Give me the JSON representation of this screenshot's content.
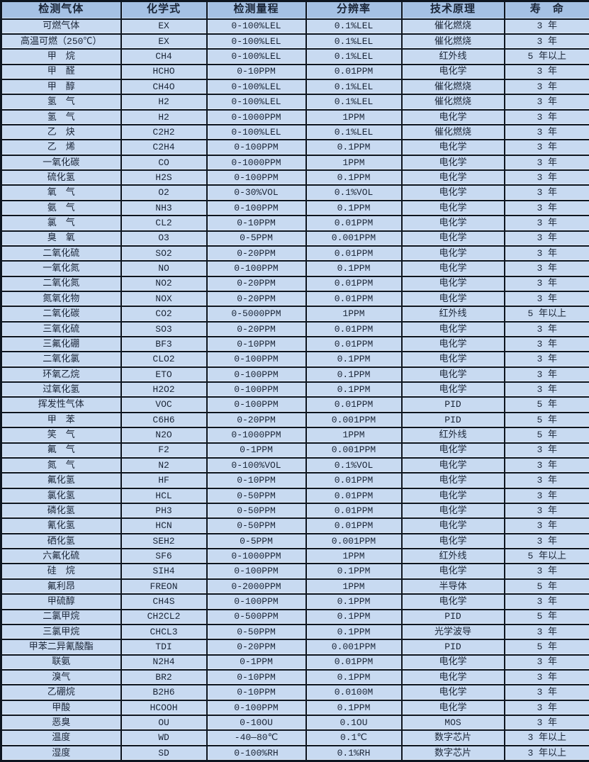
{
  "colors": {
    "header_bg": "#a5c1e4",
    "row_bg": "#c8daf1",
    "border": "#0d1520",
    "text": "#1b2638"
  },
  "table": {
    "columns": [
      "检测气体",
      "化学式",
      "检测量程",
      "分辨率",
      "技术原理",
      "寿　命"
    ],
    "rows": [
      [
        "可燃气体",
        "EX",
        "0-100%LEL",
        "0.1%LEL",
        "催化燃烧",
        "3 年"
      ],
      [
        "高温可燃（250℃）",
        "EX",
        "0-100%LEL",
        "0.1%LEL",
        "催化燃烧",
        "3 年"
      ],
      [
        "甲　烷",
        "CH4",
        "0-100%LEL",
        "0.1%LEL",
        "红外线",
        "5 年以上"
      ],
      [
        "甲　醛",
        "HCHO",
        "0-10PPM",
        "0.01PPM",
        "电化学",
        "3 年"
      ],
      [
        "甲　醇",
        "CH4O",
        "0-100%LEL",
        "0.1%LEL",
        "催化燃烧",
        "3 年"
      ],
      [
        "氢　气",
        "H2",
        "0-100%LEL",
        "0.1%LEL",
        "催化燃烧",
        "3 年"
      ],
      [
        "氢　气",
        "H2",
        "0-1000PPM",
        "1PPM",
        "电化学",
        "3 年"
      ],
      [
        "乙　炔",
        "C2H2",
        "0-100%LEL",
        "0.1%LEL",
        "催化燃烧",
        "3 年"
      ],
      [
        "乙　烯",
        "C2H4",
        "0-100PPM",
        "0.1PPM",
        "电化学",
        "3 年"
      ],
      [
        "一氧化碳",
        "CO",
        "0-1000PPM",
        "1PPM",
        "电化学",
        "3 年"
      ],
      [
        "硫化氢",
        "H2S",
        "0-100PPM",
        "0.1PPM",
        "电化学",
        "3 年"
      ],
      [
        "氧　气",
        "O2",
        "0-30%VOL",
        "0.1%VOL",
        "电化学",
        "3 年"
      ],
      [
        "氨　气",
        "NH3",
        "0-100PPM",
        "0.1PPM",
        "电化学",
        "3 年"
      ],
      [
        "氯　气",
        "CL2",
        "0-10PPM",
        "0.01PPM",
        "电化学",
        "3 年"
      ],
      [
        "臭　氧",
        "O3",
        "0-5PPM",
        "0.001PPM",
        "电化学",
        "3 年"
      ],
      [
        "二氧化硫",
        "SO2",
        "0-20PPM",
        "0.01PPM",
        "电化学",
        "3 年"
      ],
      [
        "一氧化氮",
        "NO",
        "0-100PPM",
        "0.1PPM",
        "电化学",
        "3 年"
      ],
      [
        "二氧化氮",
        "NO2",
        "0-20PPM",
        "0.01PPM",
        "电化学",
        "3 年"
      ],
      [
        "氮氧化物",
        "NOX",
        "0-20PPM",
        "0.01PPM",
        "电化学",
        "3 年"
      ],
      [
        "二氧化碳",
        "CO2",
        "0-5000PPM",
        "1PPM",
        "红外线",
        "5 年以上"
      ],
      [
        "三氧化硫",
        "SO3",
        "0-20PPM",
        "0.01PPM",
        "电化学",
        "3 年"
      ],
      [
        "三氟化硼",
        "BF3",
        "0-10PPM",
        "0.01PPM",
        "电化学",
        "3 年"
      ],
      [
        "二氧化氯",
        "CLO2",
        "0-100PPM",
        "0.1PPM",
        "电化学",
        "3 年"
      ],
      [
        "环氧乙烷",
        "ETO",
        "0-100PPM",
        "0.1PPM",
        "电化学",
        "3 年"
      ],
      [
        "过氧化氢",
        "H2O2",
        "0-100PPM",
        "0.1PPM",
        "电化学",
        "3 年"
      ],
      [
        "挥发性气体",
        "VOC",
        "0-100PPM",
        "0.01PPM",
        "PID",
        "5 年"
      ],
      [
        "甲　苯",
        "C6H6",
        "0-20PPM",
        "0.001PPM",
        "PID",
        "5 年"
      ],
      [
        "笑　气",
        "N2O",
        "0-1000PPM",
        "1PPM",
        "红外线",
        "5 年"
      ],
      [
        "氟　气",
        "F2",
        "0-1PPM",
        "0.001PPM",
        "电化学",
        "3 年"
      ],
      [
        "氮　气",
        "N2",
        "0-100%VOL",
        "0.1%VOL",
        "电化学",
        "3 年"
      ],
      [
        "氟化氢",
        "HF",
        "0-10PPM",
        "0.01PPM",
        "电化学",
        "3 年"
      ],
      [
        "氯化氢",
        "HCL",
        "0-50PPM",
        "0.01PPM",
        "电化学",
        "3 年"
      ],
      [
        "磷化氢",
        "PH3",
        "0-50PPM",
        "0.01PPM",
        "电化学",
        "3 年"
      ],
      [
        "氰化氢",
        "HCN",
        "0-50PPM",
        "0.01PPM",
        "电化学",
        "3 年"
      ],
      [
        "硒化氢",
        "SEH2",
        "0-5PPM",
        "0.001PPM",
        "电化学",
        "3 年"
      ],
      [
        "六氟化硫",
        "SF6",
        "0-1000PPM",
        "1PPM",
        "红外线",
        "5 年以上"
      ],
      [
        "硅　烷",
        "SIH4",
        "0-100PPM",
        "0.1PPM",
        "电化学",
        "3 年"
      ],
      [
        "氟利昂",
        "FREON",
        "0-2000PPM",
        "1PPM",
        "半导体",
        "5 年"
      ],
      [
        "甲硫醇",
        "CH4S",
        "0-100PPM",
        "0.1PPM",
        "电化学",
        "3 年"
      ],
      [
        "二氯甲烷",
        "CH2CL2",
        "0-500PPM",
        "0.1PPM",
        "PID",
        "5 年"
      ],
      [
        "三氯甲烷",
        "CHCL3",
        "0-50PPM",
        "0.1PPM",
        "光学波导",
        "3 年"
      ],
      [
        "甲苯二异氰酸酯",
        "TDI",
        "0-20PPM",
        "0.001PPM",
        "PID",
        "5 年"
      ],
      [
        "联氨",
        "N2H4",
        "0-1PPM",
        "0.01PPM",
        "电化学",
        "3 年"
      ],
      [
        "溴气",
        "BR2",
        "0-10PPM",
        "0.1PPM",
        "电化学",
        "3 年"
      ],
      [
        "乙硼烷",
        "B2H6",
        "0-10PPM",
        "0.0100M",
        "电化学",
        "3 年"
      ],
      [
        "甲酸",
        "HCOOH",
        "0-100PPM",
        "0.1PPM",
        "电化学",
        "3 年"
      ],
      [
        "恶臭",
        "OU",
        "0-10OU",
        "0.1OU",
        "MOS",
        "3 年"
      ],
      [
        "温度",
        "WD",
        "-40—80℃",
        "0.1℃",
        "数字芯片",
        "3 年以上"
      ],
      [
        "湿度",
        "SD",
        "0-100%RH",
        "0.1%RH",
        "数字芯片",
        "3 年以上"
      ]
    ]
  }
}
